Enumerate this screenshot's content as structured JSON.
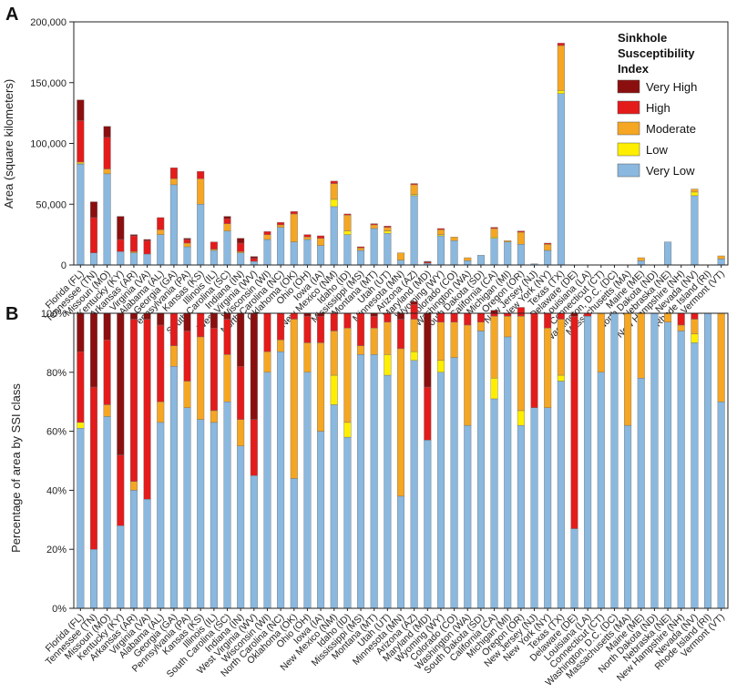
{
  "colors": {
    "very_high": "#8b0f0f",
    "high": "#e41b1b",
    "moderate": "#f5a623",
    "low": "#ffee00",
    "very_low": "#8ab8df"
  },
  "chart_data": [
    {
      "panel": "A",
      "type": "bar",
      "stacked": true,
      "ylabel": "Area (square kilometers)",
      "ylim": [
        0,
        200000
      ],
      "yticks": [
        0,
        50000,
        100000,
        150000,
        200000
      ],
      "ytick_labels": [
        "0",
        "50,000",
        "100,000",
        "150,000",
        "200,000"
      ],
      "legend": {
        "title": [
          "Sinkhole",
          "Susceptibility",
          "Index"
        ],
        "position": "top-right",
        "entries": [
          {
            "key": "very_high",
            "label": "Very High"
          },
          {
            "key": "high",
            "label": "High"
          },
          {
            "key": "moderate",
            "label": "Moderate"
          },
          {
            "key": "low",
            "label": "Low"
          },
          {
            "key": "very_low",
            "label": "Very Low"
          }
        ]
      },
      "categories": [
        "Florida (FL)",
        "Tennessee (TN)",
        "Missouri (MO)",
        "Kentucky (KY)",
        "Arkansas (AR)",
        "Virginia (VA)",
        "Alabama (AL)",
        "Georgia (GA)",
        "Pennsylvania (PA)",
        "Kansas (KS)",
        "Illinois (IL)",
        "South Carolina (SC)",
        "Indiana (IN)",
        "West Virginia (WV)",
        "Wisconsin (WI)",
        "North Carolina (NC)",
        "Oklahoma (OK)",
        "Ohio (OH)",
        "Iowa (IA)",
        "New Mexico (NM)",
        "Idaho (ID)",
        "Mississippi (MS)",
        "Montana (MT)",
        "Utah (UT)",
        "Minnesota (MN)",
        "Arizona (AZ)",
        "Maryland (MD)",
        "Wyoming (WY)",
        "Colorado (CO)",
        "Washington (WA)",
        "South Dakota (SD)",
        "California (CA)",
        "Michigan (MI)",
        "Oregon (OR)",
        "New Jersey (NJ)",
        "New York (NY)",
        "Texas (TX)",
        "Delaware (DE)",
        "Louisiana (LA)",
        "Connecticut (CT)",
        "Washington, D.C. (DC)",
        "Massachusetts (MA)",
        "Maine (ME)",
        "North Dakota (ND)",
        "Nebraska (NE)",
        "New Hampshire (NH)",
        "Nevada (NV)",
        "Rhode Island (RI)",
        "Vermont (VT)"
      ],
      "series": [
        {
          "key": "very_low",
          "name": "Very Low",
          "values": [
            83000,
            10000,
            75000,
            11000,
            10000,
            9000,
            25000,
            66000,
            15000,
            50000,
            12000,
            28000,
            10000,
            3000,
            21000,
            31000,
            19000,
            21000,
            16000,
            48000,
            25000,
            12000,
            30000,
            26000,
            4000,
            57000,
            1500,
            24000,
            20000,
            3500,
            8000,
            22000,
            19000,
            17000,
            1000,
            12000,
            141000,
            100,
            0,
            0,
            0,
            0,
            3500,
            0,
            19000,
            0,
            57000,
            0,
            5000
          ]
        },
        {
          "key": "low",
          "name": "Low",
          "values": [
            800,
            0,
            0,
            0,
            0,
            0,
            0,
            0,
            0,
            0,
            0,
            0,
            0,
            0,
            0,
            0,
            0,
            0,
            0,
            6000,
            3000,
            0,
            0,
            2000,
            0,
            1000,
            0,
            1000,
            0,
            0,
            0,
            1000,
            0,
            0,
            0,
            0,
            2500,
            0,
            0,
            0,
            0,
            0,
            0,
            0,
            0,
            0,
            3000,
            0,
            0
          ]
        },
        {
          "key": "moderate",
          "name": "Moderate",
          "values": [
            1000,
            0,
            4000,
            0,
            1000,
            0,
            4000,
            5000,
            3000,
            21000,
            1000,
            6000,
            1000,
            0,
            4000,
            2000,
            23000,
            2000,
            6000,
            13000,
            13000,
            2000,
            3000,
            3000,
            6000,
            8000,
            0,
            4000,
            3000,
            2500,
            0,
            7000,
            1000,
            10000,
            0,
            5000,
            37000,
            0,
            0,
            0,
            0,
            0,
            2500,
            0,
            0,
            0,
            2500,
            0,
            2500
          ]
        },
        {
          "key": "high",
          "name": "High",
          "values": [
            34000,
            29000,
            26000,
            10000,
            13000,
            11000,
            10000,
            9000,
            3000,
            6000,
            6000,
            4000,
            7000,
            2500,
            2500,
            2000,
            2000,
            2000,
            2000,
            2000,
            1000,
            1000,
            1000,
            1000,
            0,
            1000,
            1000,
            1000,
            0,
            0,
            0,
            1000,
            0,
            1000,
            0,
            1000,
            2000,
            100,
            0,
            0,
            0,
            0,
            0,
            0,
            0,
            0,
            0,
            0,
            0
          ]
        },
        {
          "key": "very_high",
          "name": "Very High",
          "values": [
            17000,
            13000,
            9000,
            19000,
            1000,
            1000,
            0,
            0,
            1000,
            0,
            0,
            2000,
            4000,
            1500,
            0,
            0,
            0,
            0,
            0,
            0,
            0,
            0,
            0,
            0,
            0,
            0,
            500,
            0,
            0,
            0,
            0,
            0,
            0,
            0,
            0,
            0,
            0,
            0,
            0,
            0,
            0,
            0,
            0,
            0,
            0,
            0,
            0,
            0,
            0
          ]
        }
      ]
    },
    {
      "panel": "B",
      "type": "bar",
      "stacked": true,
      "ylabel": "Percentage of area by SSI class",
      "ylim": [
        0,
        100
      ],
      "yticks": [
        0,
        20,
        40,
        60,
        80,
        100
      ],
      "ytick_labels": [
        "0%",
        "20%",
        "40%",
        "60%",
        "80%",
        "100%"
      ],
      "categories": [
        "Florida (FL)",
        "Tennessee (TN)",
        "Missouri (MO)",
        "Kentucky (KY)",
        "Arkansas (AR)",
        "Virginia (VA)",
        "Alabama (AL)",
        "Georgia (GA)",
        "Pennsylvania (PA)",
        "Kansas (KS)",
        "Illinois (IL)",
        "South Carolina (SC)",
        "Indiana (IN)",
        "West Virginia (WV)",
        "Wisconsin (WI)",
        "North Carolina (NC)",
        "Oklahoma (OK)",
        "Ohio (OH)",
        "Iowa (IA)",
        "New Mexico (NM)",
        "Idaho (ID)",
        "Mississippi (MS)",
        "Montana (MT)",
        "Utah (UT)",
        "Minnesota (MN)",
        "Arizona (AZ)",
        "Maryland (MD)",
        "Wyoming (WY)",
        "Colorado (CO)",
        "Washington (WA)",
        "South Dakota (SD)",
        "California (CA)",
        "Michigan (MI)",
        "Oregon (OR)",
        "New Jersey (NJ)",
        "New York (NY)",
        "Texas (TX)",
        "Delaware (DE)",
        "Louisiana (LA)",
        "Connecticut (CT)",
        "Washington, D.C. (DC)",
        "Massachusetts (MA)",
        "Maine (ME)",
        "North Dakota (ND)",
        "Nebraska (NE)",
        "New Hampshire (NH)",
        "Nevada (NV)",
        "Rhode Island (RI)",
        "Vermont (VT)"
      ],
      "series": [
        {
          "key": "very_low",
          "name": "Very Low",
          "values": [
            61,
            20,
            65,
            28,
            40,
            37,
            63,
            82,
            68,
            64,
            63,
            70,
            55,
            45,
            80,
            87,
            44,
            80,
            60,
            69,
            58,
            86,
            86,
            79,
            38,
            84,
            57,
            80,
            85,
            62,
            94,
            71,
            92,
            62,
            68,
            68,
            77,
            27,
            99,
            80,
            100,
            62,
            78,
            100,
            97,
            94,
            90,
            100,
            70
          ]
        },
        {
          "key": "low",
          "name": "Low",
          "values": [
            2,
            0,
            0,
            0,
            0,
            0,
            0,
            0,
            0,
            0,
            0,
            0,
            0,
            0,
            0,
            0,
            0,
            0,
            0,
            10,
            5,
            0,
            0,
            7,
            0,
            3,
            0,
            4,
            0,
            0,
            0,
            7,
            0,
            5,
            0,
            0,
            2,
            0,
            0,
            0,
            0,
            0,
            0,
            0,
            0,
            0,
            3,
            0,
            0
          ]
        },
        {
          "key": "moderate",
          "name": "Moderate",
          "values": [
            0,
            0,
            4,
            0,
            3,
            0,
            7,
            7,
            9,
            28,
            4,
            16,
            9,
            0,
            7,
            4,
            54,
            10,
            30,
            15,
            32,
            3,
            9,
            11,
            50,
            11,
            0,
            13,
            12,
            34,
            3,
            21,
            7,
            32,
            0,
            27,
            19,
            0,
            0,
            20,
            0,
            38,
            22,
            0,
            3,
            2,
            5,
            0,
            30
          ]
        },
        {
          "key": "high",
          "name": "High",
          "values": [
            24,
            55,
            22,
            24,
            55,
            61,
            26,
            11,
            17,
            8,
            28,
            12,
            18,
            19,
            13,
            9,
            2,
            9,
            9,
            6,
            5,
            11,
            4,
            3,
            10,
            5,
            18,
            3,
            3,
            4,
            3,
            1,
            1,
            3,
            32,
            5,
            2,
            72,
            1,
            0,
            0,
            0,
            0,
            0,
            0,
            4,
            2,
            0,
            0
          ]
        },
        {
          "key": "very_high",
          "name": "Very High",
          "values": [
            13,
            25,
            9,
            48,
            2,
            2,
            4,
            0,
            6,
            0,
            5,
            2,
            18,
            36,
            0,
            0,
            0,
            1,
            1,
            0,
            0,
            0,
            1,
            0,
            2,
            1,
            25,
            0,
            0,
            0,
            0,
            1,
            0,
            0,
            0,
            0,
            0,
            1,
            0,
            0,
            0,
            0,
            0,
            0,
            0,
            0,
            0,
            0,
            0
          ]
        }
      ]
    }
  ]
}
